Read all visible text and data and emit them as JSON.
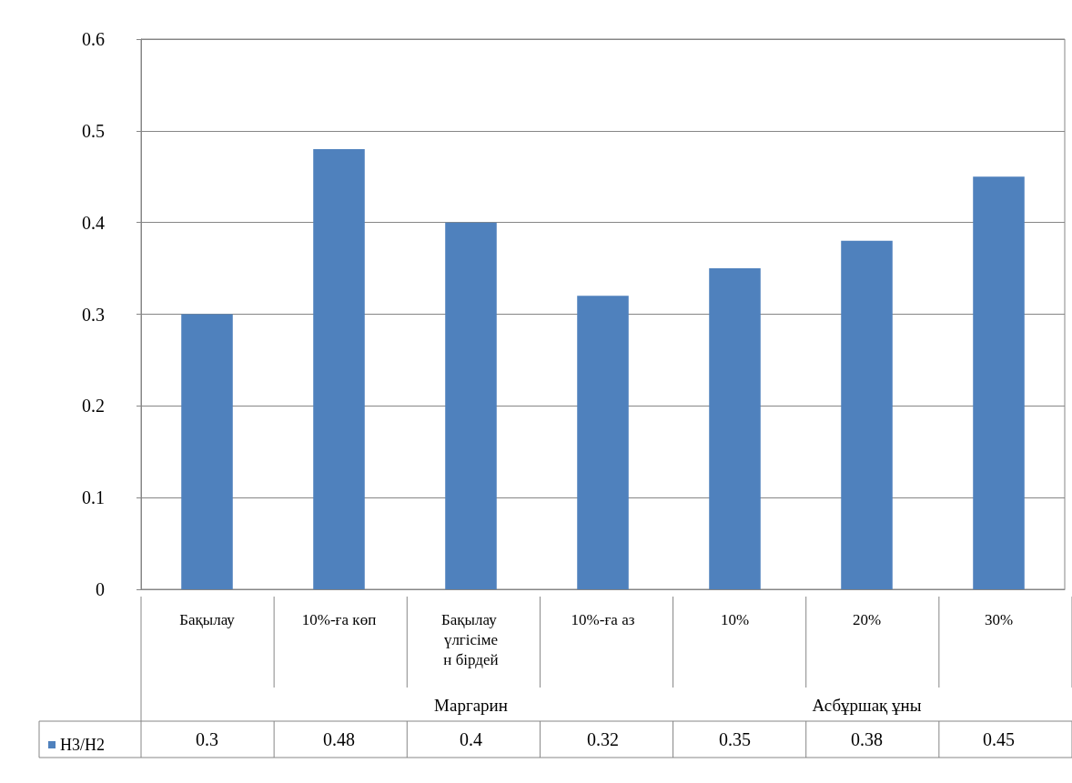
{
  "chart_data": {
    "type": "bar",
    "categories": [
      "Бақылау",
      "10%-ға көп",
      "Бақылау үлгісімен бірдей",
      "10%-ға аз",
      "10%",
      "20%",
      "30%"
    ],
    "series": [
      {
        "name": "Н3/Н2",
        "color": "#4f81bd",
        "values": [
          0.3,
          0.48,
          0.4,
          0.32,
          0.35,
          0.38,
          0.45
        ]
      }
    ],
    "annotations": [
      "Маргарин",
      "Асбұршақ ұны"
    ],
    "ylim": [
      0,
      0.6
    ],
    "yticks": [
      0,
      0.1,
      0.2,
      0.3,
      0.4,
      0.5,
      0.6
    ],
    "grid": "y",
    "legend": "bottom left",
    "data_labels": true
  }
}
